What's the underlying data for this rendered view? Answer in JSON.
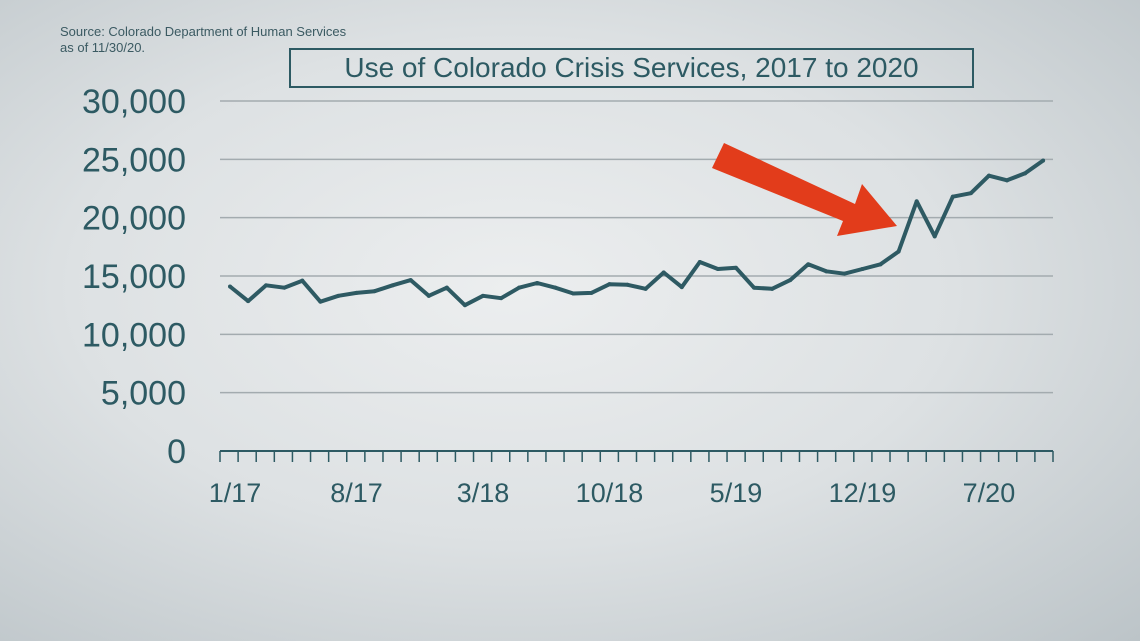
{
  "source": [
    "Source: Colorado Department of Human Services",
    "as of 11/30/20."
  ],
  "chart_data": {
    "type": "line",
    "title": "Use of Colorado Crisis Services, 2017 to 2020",
    "xlabel": "",
    "ylabel": "",
    "ylim": [
      0,
      30000
    ],
    "yticks": [
      "0",
      "5,000",
      "10,000",
      "15,000",
      "20,000",
      "25,000",
      "30,000"
    ],
    "xtick_labels": [
      "1/17",
      "8/17",
      "3/18",
      "10/18",
      "5/19",
      "12/19",
      "7/20"
    ],
    "grid": true,
    "x": [
      "1/17",
      "2/17",
      "3/17",
      "4/17",
      "5/17",
      "6/17",
      "7/17",
      "8/17",
      "9/17",
      "10/17",
      "11/17",
      "12/17",
      "1/18",
      "2/18",
      "3/18",
      "4/18",
      "5/18",
      "6/18",
      "7/18",
      "8/18",
      "9/18",
      "10/18",
      "11/18",
      "12/18",
      "1/19",
      "2/19",
      "3/19",
      "4/19",
      "5/19",
      "6/19",
      "7/19",
      "8/19",
      "9/19",
      "10/19",
      "11/19",
      "12/19",
      "1/20",
      "2/20",
      "3/20",
      "4/20",
      "5/20",
      "6/20",
      "7/20",
      "8/20",
      "9/20",
      "10/20"
    ],
    "series": [
      {
        "values": [
          14100,
          12850,
          14200,
          14000,
          14600,
          12800,
          13300,
          13550,
          13700,
          14200,
          14650,
          13300,
          14000,
          12500,
          13300,
          13100,
          14000,
          14400,
          14000,
          13500,
          13550,
          14300,
          14250,
          13900,
          15300,
          14050,
          16200,
          15600,
          15700,
          14000,
          13900,
          14650,
          16000,
          15400,
          15200,
          15600,
          16000,
          17100,
          21400,
          18400,
          21800,
          22100,
          23600,
          23200,
          23800,
          24900
        ]
      }
    ],
    "line_color": "#2e5a63",
    "annotation": {
      "type": "arrow",
      "color": "#e23c1b",
      "points_to": "3/20"
    }
  }
}
